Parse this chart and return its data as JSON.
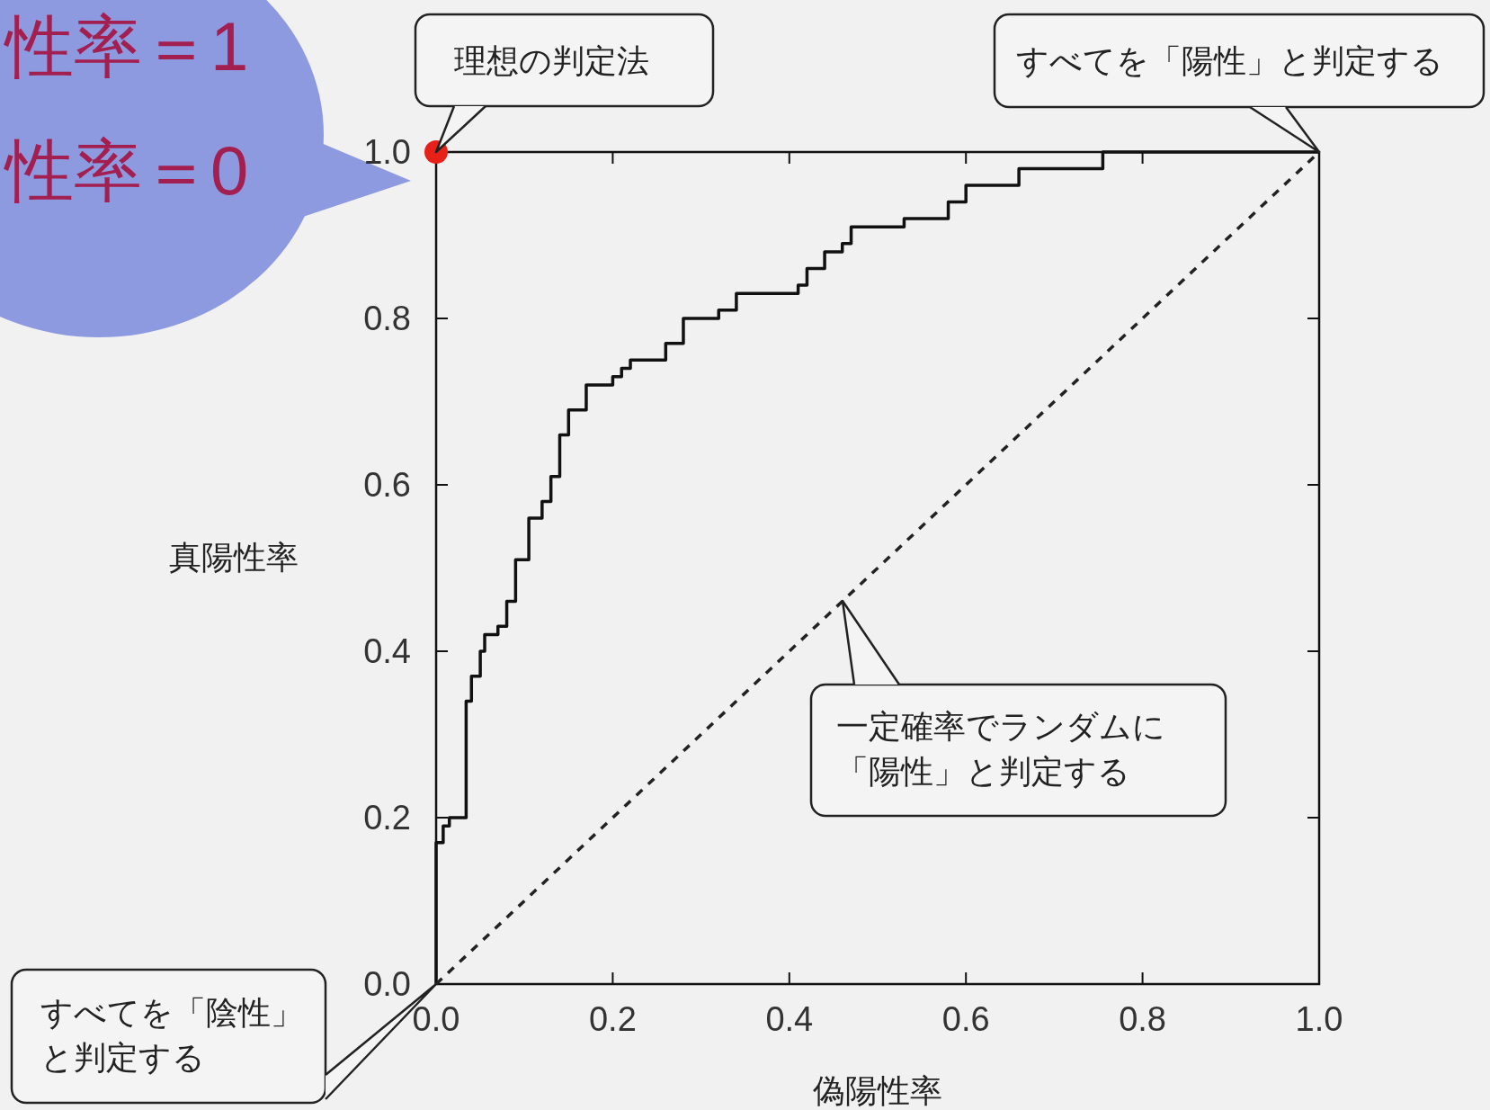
{
  "chart_data": {
    "type": "line",
    "xlabel": "偽陽性率",
    "ylabel": "真陽性率",
    "xlim": [
      0,
      1
    ],
    "ylim": [
      0,
      1
    ],
    "xticks": [
      {
        "value": 0,
        "label": "0.0"
      },
      {
        "value": 0.2,
        "label": "0.2"
      },
      {
        "value": 0.4,
        "label": "0.4"
      },
      {
        "value": 0.6,
        "label": "0.6"
      },
      {
        "value": 0.8,
        "label": "0.8"
      },
      {
        "value": 1,
        "label": "1.0"
      }
    ],
    "yticks": [
      {
        "value": 0,
        "label": "0.0"
      },
      {
        "value": 0.2,
        "label": "0.2"
      },
      {
        "value": 0.4,
        "label": "0.4"
      },
      {
        "value": 0.6,
        "label": "0.6"
      },
      {
        "value": 0.8,
        "label": "0.8"
      },
      {
        "value": 1,
        "label": "1.0"
      }
    ],
    "series": [
      {
        "color": "#111111",
        "line_style": "solid",
        "x": [
          0,
          0,
          0.008,
          0.008,
          0.015,
          0.015,
          0.034,
          0.034,
          0.04,
          0.04,
          0.05,
          0.05,
          0.055,
          0.055,
          0.07,
          0.07,
          0.08,
          0.08,
          0.09,
          0.09,
          0.105,
          0.105,
          0.12,
          0.12,
          0.13,
          0.13,
          0.14,
          0.14,
          0.15,
          0.15,
          0.17,
          0.17,
          0.2,
          0.2,
          0.21,
          0.21,
          0.22,
          0.22,
          0.26,
          0.26,
          0.28,
          0.28,
          0.32,
          0.32,
          0.34,
          0.34,
          0.41,
          0.41,
          0.42,
          0.42,
          0.44,
          0.44,
          0.46,
          0.46,
          0.47,
          0.47,
          0.53,
          0.53,
          0.58,
          0.58,
          0.6,
          0.6,
          0.66,
          0.66,
          0.755,
          0.755,
          1.0
        ],
        "values": [
          0,
          0.17,
          0.17,
          0.19,
          0.19,
          0.2,
          0.2,
          0.34,
          0.34,
          0.37,
          0.37,
          0.4,
          0.4,
          0.42,
          0.42,
          0.43,
          0.43,
          0.46,
          0.46,
          0.51,
          0.51,
          0.56,
          0.56,
          0.58,
          0.58,
          0.61,
          0.61,
          0.66,
          0.66,
          0.69,
          0.69,
          0.72,
          0.72,
          0.73,
          0.73,
          0.74,
          0.74,
          0.75,
          0.75,
          0.77,
          0.77,
          0.8,
          0.8,
          0.81,
          0.81,
          0.83,
          0.83,
          0.84,
          0.84,
          0.86,
          0.86,
          0.88,
          0.88,
          0.89,
          0.89,
          0.91,
          0.91,
          0.92,
          0.92,
          0.94,
          0.94,
          0.96,
          0.96,
          0.98,
          0.98,
          1.0,
          1.0
        ]
      },
      {
        "type": "line",
        "color": "#222222",
        "line_style": "dashed",
        "x": [
          0,
          1
        ],
        "values": [
          0,
          1
        ]
      },
      {
        "type": "scatter",
        "color": "#e8201a",
        "marker": "circle",
        "x": [
          0
        ],
        "values": [
          1
        ]
      }
    ],
    "annotations": [
      "理想の判定法",
      {
        "text": "すべてを「陽性」と判定する",
        "x": 1,
        "y": 1
      },
      "すべてを「陰性」と判定する",
      "一定確率でランダムに「陽性」と判定する",
      "性率＝1\n性率＝0"
    ]
  }
}
